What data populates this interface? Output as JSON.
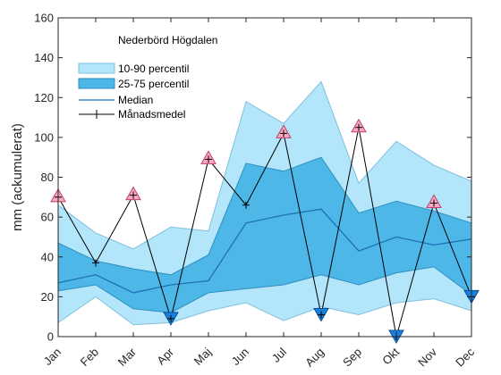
{
  "chart_data": {
    "type": "area",
    "title": "Nederbörd Högdalen",
    "xlabel": "",
    "ylabel": "mm (ackumulerat)",
    "ylim": [
      0,
      160
    ],
    "yticks": [
      0,
      20,
      40,
      60,
      80,
      100,
      120,
      140,
      160
    ],
    "categories": [
      "Jan",
      "Feb",
      "Mar",
      "Apr",
      "Maj",
      "Jun",
      "Jul",
      "Aug",
      "Sep",
      "Okt",
      "Nov",
      "Dec"
    ],
    "grid": false,
    "legend_position": "top-left",
    "series": [
      {
        "name": "10-90 percentil",
        "kind": "band",
        "lower": [
          7,
          20,
          6,
          7,
          13,
          17,
          8,
          15,
          11,
          17,
          19,
          13
        ],
        "upper": [
          66,
          52,
          44,
          55,
          53,
          118,
          107,
          128,
          77,
          98,
          86,
          78
        ]
      },
      {
        "name": "25-75 percentil",
        "kind": "band",
        "lower": [
          23,
          26,
          14,
          12,
          22,
          24,
          26,
          31,
          26,
          32,
          35,
          21
        ],
        "upper": [
          47,
          38,
          34,
          31,
          41,
          87,
          83,
          90,
          62,
          68,
          63,
          57
        ]
      },
      {
        "name": "Median",
        "kind": "line",
        "values": [
          27,
          31,
          22,
          26,
          28,
          57,
          61,
          64,
          43,
          50,
          46,
          49
        ]
      },
      {
        "name": "Månadsmedel",
        "kind": "line-markers",
        "values": [
          70,
          37,
          71,
          9,
          89,
          66,
          102,
          11,
          105,
          0,
          67,
          20
        ]
      }
    ]
  },
  "colors": {
    "band_outer": "#b3e5fb",
    "band_outer_edge": "#7fc0dc",
    "band_inner": "#4db8e8",
    "band_inner_edge": "#2f8fc0",
    "median": "#1f6fb5",
    "mean_line": "#000000",
    "marker_up": "#f7a8c2",
    "marker_up_edge": "#c0406a",
    "marker_down": "#1a7fd8",
    "marker_down_edge": "#0b4f9a"
  }
}
